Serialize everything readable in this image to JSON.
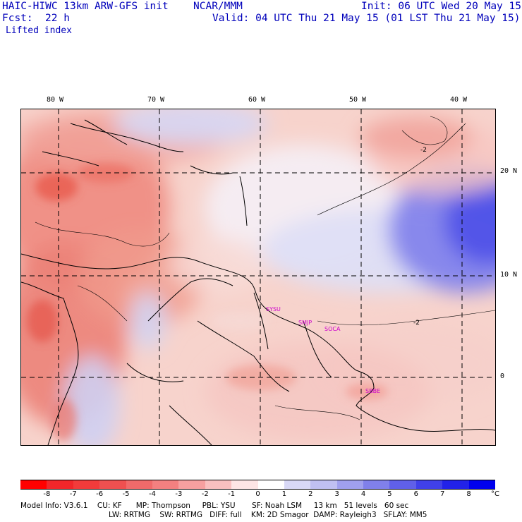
{
  "header": {
    "model_title": "HAIC-HIWC 13km ARW-GFS init",
    "org": "NCAR/MMM",
    "fcst_label": "Fcst:",
    "fcst_value": "22 h",
    "init": "Init: 06 UTC Wed 20 May 15",
    "valid": "Valid: 04 UTC Thu 21 May 15 (01 LST Thu 21 May 15)",
    "field": "Lifted index"
  },
  "map": {
    "lon_labels": [
      "80 W",
      "70 W",
      "60 W",
      "50 W",
      "40 W"
    ],
    "lat_labels": [
      "20 N",
      "10 N",
      "0"
    ],
    "contour_label": "-2",
    "sites": [
      "SYSU",
      "SMJP",
      "SOCA",
      "SBBE"
    ],
    "colors": {
      "negative_light": "#f7d3cc",
      "negative_mid": "#f09a8c",
      "negative_strong": "#e95a4c",
      "positive_light": "#dde0f5",
      "positive_strong": "#5a5ce8"
    }
  },
  "colorbar": {
    "labels": [
      "-8",
      "-7",
      "-6",
      "-5",
      "-4",
      "-3",
      "-2",
      "-1",
      "0",
      "1",
      "2",
      "3",
      "4",
      "5",
      "6",
      "7",
      "8"
    ],
    "unit": "°C",
    "colors": [
      "#ff0000",
      "#f2262a",
      "#f23b3b",
      "#ef5050",
      "#f06a6a",
      "#f38080",
      "#f6a0a0",
      "#f9c0c0",
      "#fde5e5",
      "#ffffff",
      "#d8d8f6",
      "#c0c0f2",
      "#a0a0ee",
      "#8080ea",
      "#6060e8",
      "#4040e8",
      "#2222e8",
      "#0000ee"
    ]
  },
  "footer": {
    "line1": "Model Info: V3.6.1    CU: KF      MP: Thompson     PBL: YSU       SF: Noah LSM     13 km   51 levels   60 sec",
    "line2": "LW: RRTMG    SW: RRTMG   DIFF: full    KM: 2D Smagor  DAMP: Rayleigh3   SFLAY: MM5"
  }
}
